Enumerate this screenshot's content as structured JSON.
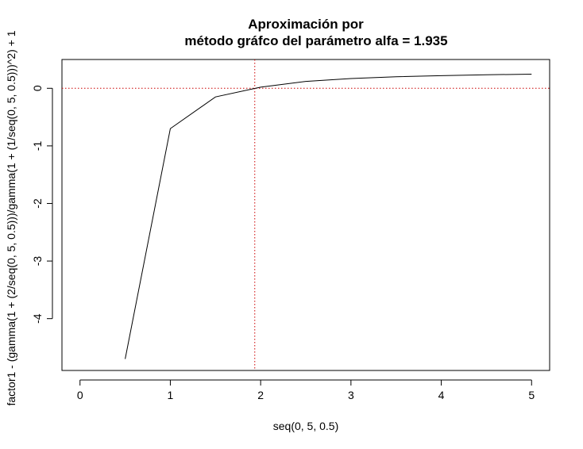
{
  "chart_data": {
    "type": "line",
    "title_lines": [
      "Aproximación por",
      "método gráfco del parámetro alfa = 1.935"
    ],
    "xlabel": "seq(0, 5, 0.5)",
    "ylabel": "factor1 - (gamma(1 + (2/seq(0, 5, 0.5)))/gamma(1 + (1/seq(0, 5, 0.5)))^2) + 1",
    "xlim": [
      -0.2,
      5.2
    ],
    "ylim": [
      -4.9,
      0.5
    ],
    "x_ticks": [
      0,
      1,
      2,
      3,
      4,
      5
    ],
    "y_ticks": [
      0,
      -1,
      -2,
      -3,
      -4
    ],
    "x_tick_labels": [
      "0",
      "1",
      "2",
      "3",
      "4",
      "5"
    ],
    "y_tick_labels": [
      "0",
      "-1",
      "-2",
      "-3",
      "-4"
    ],
    "series": [
      {
        "x": [
          0.5,
          1.0,
          1.5,
          2.0,
          2.5,
          3.0,
          3.5,
          4.0,
          4.5,
          5.0
        ],
        "values": [
          -4.7,
          -0.7,
          -0.15,
          0.02,
          0.12,
          0.17,
          0.2,
          0.22,
          0.235,
          0.245
        ],
        "color": "#000000"
      }
    ],
    "reference_lines": {
      "horizontal_y": 0,
      "vertical_x": 1.935,
      "color": "#cc0000",
      "style": "dotted"
    },
    "grid": false
  }
}
